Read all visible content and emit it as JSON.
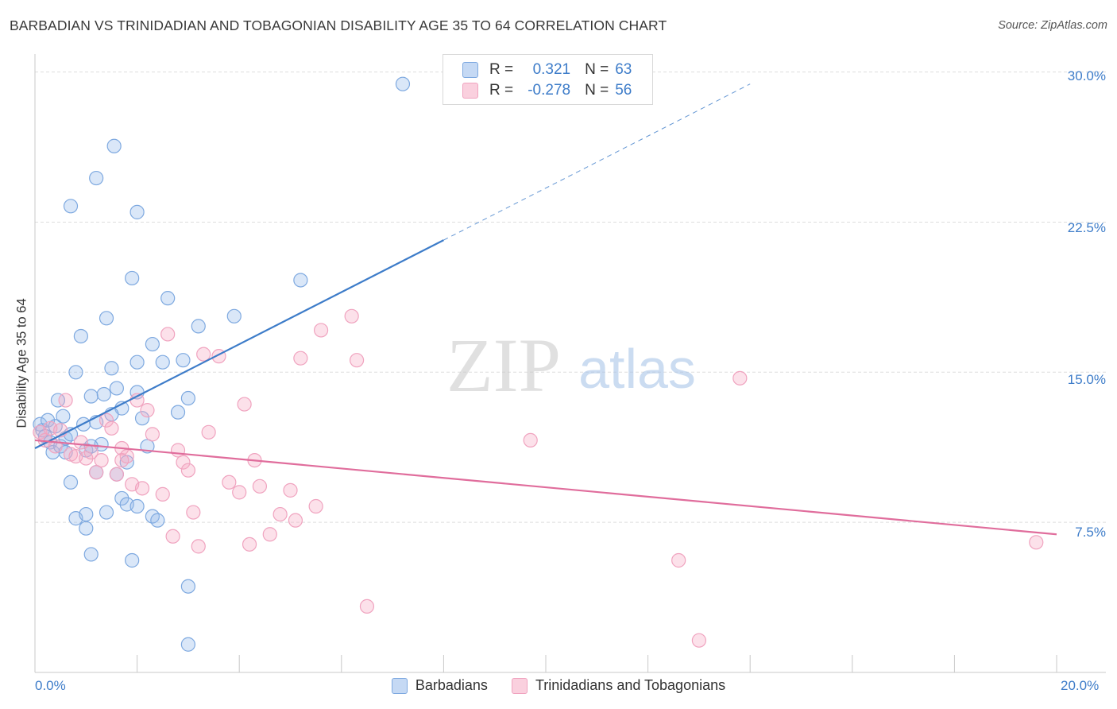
{
  "title": "BARBADIAN VS TRINIDADIAN AND TOBAGONIAN DISABILITY AGE 35 TO 64 CORRELATION CHART",
  "source": "Source: ZipAtlas.com",
  "watermark": {
    "zip": "ZIP",
    "atlas": "atlas"
  },
  "colors": {
    "blue": "#3d7cc9",
    "blue_fill": "rgba(150,185,235,0.35)",
    "blue_stroke": "#7ea9e0",
    "pink": "#e06d9c",
    "pink_fill": "rgba(245,170,195,0.35)",
    "pink_stroke": "#f0a3bf",
    "grid": "#dddddd"
  },
  "legend": {
    "r_label": "R =",
    "n_label": "N =",
    "rows": [
      {
        "r": "0.321",
        "n": "63",
        "swatch": "blue"
      },
      {
        "r": "-0.278",
        "n": "56",
        "swatch": "pink"
      }
    ]
  },
  "chart_data": {
    "type": "scatter",
    "title": "BARBADIAN VS TRINIDADIAN AND TOBAGONIAN DISABILITY AGE 35 TO 64 CORRELATION CHART",
    "xlabel": "",
    "ylabel": "Disability Age 35 to 64",
    "xlim": [
      0,
      20
    ],
    "ylim": [
      0,
      30.5
    ],
    "x_tick_labels": [
      "0.0%",
      "20.0%"
    ],
    "y_ticks": [
      7.5,
      15.0,
      22.5,
      30.0
    ],
    "y_tick_labels": [
      "7.5%",
      "15.0%",
      "22.5%",
      "30.0%"
    ],
    "grid": true,
    "legend_position": "bottom",
    "series": [
      {
        "name": "Barbadians",
        "color": "blue",
        "trend": {
          "x0": 0.0,
          "y0": 11.2,
          "x1": 8.0,
          "y1": 21.6,
          "dashed_to_x": 14.0
        },
        "points": [
          [
            0.1,
            12.4
          ],
          [
            0.15,
            12.1
          ],
          [
            0.2,
            11.8
          ],
          [
            0.25,
            12.6
          ],
          [
            0.3,
            11.5
          ],
          [
            0.35,
            11.0
          ],
          [
            0.4,
            12.3
          ],
          [
            0.45,
            13.6
          ],
          [
            0.5,
            11.3
          ],
          [
            0.55,
            12.8
          ],
          [
            0.6,
            11.7
          ],
          [
            0.7,
            11.9
          ],
          [
            0.8,
            15.0
          ],
          [
            0.9,
            16.8
          ],
          [
            0.95,
            12.4
          ],
          [
            1.0,
            11.1
          ],
          [
            1.1,
            13.8
          ],
          [
            1.2,
            12.5
          ],
          [
            1.3,
            11.4
          ],
          [
            1.4,
            17.7
          ],
          [
            1.5,
            15.2
          ],
          [
            1.6,
            14.2
          ],
          [
            1.7,
            13.2
          ],
          [
            1.8,
            10.5
          ],
          [
            1.9,
            19.7
          ],
          [
            2.0,
            14.0
          ],
          [
            2.1,
            12.7
          ],
          [
            2.3,
            16.4
          ],
          [
            2.5,
            15.5
          ],
          [
            2.6,
            18.7
          ],
          [
            2.8,
            13.0
          ],
          [
            2.9,
            15.6
          ],
          [
            3.0,
            13.7
          ],
          [
            3.2,
            17.3
          ],
          [
            3.9,
            17.8
          ],
          [
            5.2,
            19.6
          ],
          [
            7.2,
            29.4
          ],
          [
            1.55,
            26.3
          ],
          [
            1.2,
            24.7
          ],
          [
            0.7,
            23.3
          ],
          [
            2.0,
            23.0
          ],
          [
            0.7,
            9.5
          ],
          [
            0.8,
            7.7
          ],
          [
            1.0,
            7.9
          ],
          [
            1.0,
            7.2
          ],
          [
            1.1,
            11.3
          ],
          [
            1.2,
            10.0
          ],
          [
            1.4,
            8.0
          ],
          [
            1.6,
            9.9
          ],
          [
            1.7,
            8.7
          ],
          [
            1.8,
            8.4
          ],
          [
            2.0,
            8.3
          ],
          [
            2.2,
            11.3
          ],
          [
            2.3,
            7.8
          ],
          [
            2.4,
            7.6
          ],
          [
            1.1,
            5.9
          ],
          [
            1.9,
            5.6
          ],
          [
            3.0,
            4.3
          ],
          [
            3.0,
            1.4
          ],
          [
            1.5,
            12.9
          ],
          [
            0.6,
            11.0
          ],
          [
            1.35,
            13.9
          ],
          [
            2.0,
            15.5
          ]
        ]
      },
      {
        "name": "Trinidadians and Tobagonians",
        "color": "pink",
        "trend": {
          "x0": 0.0,
          "y0": 11.6,
          "x1": 20.0,
          "y1": 6.9
        },
        "points": [
          [
            0.1,
            12.0
          ],
          [
            0.2,
            11.6
          ],
          [
            0.3,
            12.2
          ],
          [
            0.4,
            11.3
          ],
          [
            0.5,
            12.1
          ],
          [
            0.6,
            13.6
          ],
          [
            0.7,
            10.9
          ],
          [
            0.8,
            10.8
          ],
          [
            0.9,
            11.5
          ],
          [
            1.0,
            10.7
          ],
          [
            1.1,
            11.0
          ],
          [
            1.2,
            10.0
          ],
          [
            1.3,
            10.6
          ],
          [
            1.4,
            12.6
          ],
          [
            1.5,
            12.2
          ],
          [
            1.6,
            9.9
          ],
          [
            1.7,
            11.2
          ],
          [
            1.8,
            10.8
          ],
          [
            1.9,
            9.4
          ],
          [
            2.0,
            13.6
          ],
          [
            2.1,
            9.2
          ],
          [
            2.2,
            13.1
          ],
          [
            2.3,
            11.9
          ],
          [
            2.5,
            8.9
          ],
          [
            2.6,
            16.9
          ],
          [
            2.7,
            6.8
          ],
          [
            2.8,
            11.1
          ],
          [
            2.9,
            10.5
          ],
          [
            3.0,
            10.1
          ],
          [
            3.1,
            8.0
          ],
          [
            3.2,
            6.3
          ],
          [
            3.3,
            15.9
          ],
          [
            3.4,
            12.0
          ],
          [
            3.6,
            15.8
          ],
          [
            3.8,
            9.5
          ],
          [
            4.0,
            9.0
          ],
          [
            4.1,
            13.4
          ],
          [
            4.2,
            6.4
          ],
          [
            4.3,
            10.6
          ],
          [
            4.4,
            9.3
          ],
          [
            4.6,
            6.9
          ],
          [
            4.8,
            7.9
          ],
          [
            5.0,
            9.1
          ],
          [
            5.1,
            7.6
          ],
          [
            5.2,
            15.7
          ],
          [
            5.5,
            8.3
          ],
          [
            5.6,
            17.1
          ],
          [
            6.2,
            17.8
          ],
          [
            6.3,
            15.6
          ],
          [
            6.5,
            3.3
          ],
          [
            9.7,
            11.6
          ],
          [
            12.6,
            5.6
          ],
          [
            13.0,
            1.6
          ],
          [
            13.8,
            14.7
          ],
          [
            19.6,
            6.5
          ],
          [
            1.7,
            10.6
          ]
        ]
      }
    ]
  }
}
